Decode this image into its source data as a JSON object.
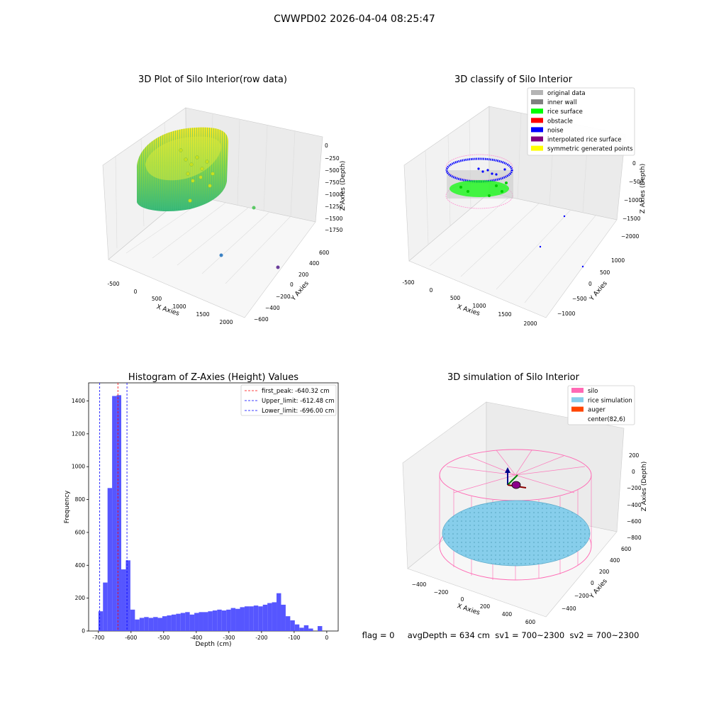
{
  "figure_title": "CWWPD02 2026-04-04 08:25:47",
  "footer_text": "flag = 0     avgDepth = 634 cm  sv1 = 700~2300  sv2 = 700~2300",
  "chart_data": [
    {
      "id": "plot1",
      "type": "scatter",
      "projection": "3d",
      "title": "3D Plot of Silo Interior(row data)",
      "xlabel": "X Axies",
      "ylabel": "Y Axies",
      "zlabel": "Z Axies (Depth)",
      "xticks": [
        "-500",
        "0",
        "500",
        "1000",
        "1500",
        "2000"
      ],
      "yticks": [
        "600",
        "400",
        "200",
        "0",
        "−200",
        "−400",
        "−600"
      ],
      "zticks": [
        "0",
        "−250",
        "−500",
        "−750",
        "−1000",
        "−1250",
        "−1500",
        "−1750"
      ],
      "colormap": "viridis",
      "outlier_points": [
        {
          "x": 1650,
          "y": 0,
          "z": -1280,
          "color": "#5ac864"
        },
        {
          "x": 1200,
          "y": -350,
          "z": -1900,
          "color": "#3b82c4"
        },
        {
          "x": 2000,
          "y": 100,
          "z": -1900,
          "color": "#6a3d9a"
        }
      ]
    },
    {
      "id": "plot2",
      "type": "scatter",
      "projection": "3d",
      "title": "3D classify of Silo Interior",
      "xlabel": "X Axies",
      "ylabel": "Y Axies",
      "zlabel": "Z Axies (Depth)",
      "xticks": [
        "-500",
        "0",
        "500",
        "1000",
        "1500",
        "2000"
      ],
      "yticks": [
        "1000",
        "500",
        "0",
        "−500",
        "−1000"
      ],
      "zticks": [
        "0",
        "−500",
        "−1000",
        "−1500",
        "−2000"
      ],
      "legend_position": "upper right",
      "legend": [
        {
          "label": "original data",
          "color": "#b4b4b4"
        },
        {
          "label": "inner wall",
          "color": "#808080"
        },
        {
          "label": "rice surface",
          "color": "#00ff00"
        },
        {
          "label": "obstacle",
          "color": "#ff0000"
        },
        {
          "label": "noise",
          "color": "#0000ff"
        },
        {
          "label": "interpolated rice surface",
          "color": "#800080"
        },
        {
          "label": "symmetric generated points",
          "color": "#ffff00"
        }
      ]
    },
    {
      "id": "plot3",
      "type": "bar",
      "title": "Histogram of Z-Axies (Height) Values",
      "xlabel": "Depth (cm)",
      "ylabel": "Frequency",
      "xlim": [
        -730,
        35
      ],
      "ylim": [
        0,
        1510
      ],
      "xticks": [
        -700,
        -600,
        -500,
        -400,
        -300,
        -200,
        -100,
        0
      ],
      "yticks": [
        0,
        200,
        400,
        600,
        800,
        1000,
        1200,
        1400
      ],
      "bar_color": "#4d4dff",
      "bin_start": -700,
      "bin_width": 14,
      "values": [
        120,
        295,
        870,
        1430,
        1435,
        375,
        430,
        130,
        70,
        80,
        85,
        80,
        85,
        80,
        90,
        95,
        100,
        105,
        110,
        115,
        100,
        110,
        115,
        115,
        120,
        125,
        130,
        125,
        130,
        140,
        135,
        145,
        150,
        150,
        155,
        150,
        160,
        170,
        175,
        230,
        160,
        90,
        65,
        40,
        20,
        35,
        15,
        0,
        30
      ],
      "vlines": [
        {
          "label": "first_peak: -640.32 cm",
          "x": -640.32,
          "color": "#ff0000"
        },
        {
          "label": "Upper_limit: -612.48 cm",
          "x": -612.48,
          "color": "#0000ff"
        },
        {
          "label": "Lower_limit: -696.00 cm",
          "x": -696.0,
          "color": "#0000ff"
        }
      ]
    },
    {
      "id": "plot4",
      "type": "scatter",
      "projection": "3d",
      "title": "3D simulation of Silo Interior",
      "xlabel": "X Axies",
      "ylabel": "Y Axies",
      "zlabel": "Z Axies (Depth)",
      "xticks": [
        "−400",
        "−200",
        "0",
        "200",
        "400",
        "600"
      ],
      "yticks": [
        "600",
        "400",
        "200",
        "0",
        "−200",
        "−400"
      ],
      "zticks": [
        "200",
        "0",
        "−200",
        "−400",
        "−600",
        "−800"
      ],
      "legend_position": "upper right",
      "legend": [
        {
          "label": "silo",
          "color": "#ff69b4"
        },
        {
          "label": "rice simulation",
          "color": "#87ceeb"
        },
        {
          "label": "auger",
          "color": "#ff4500"
        },
        {
          "label": "center(82,6)",
          "color": ""
        }
      ]
    }
  ]
}
